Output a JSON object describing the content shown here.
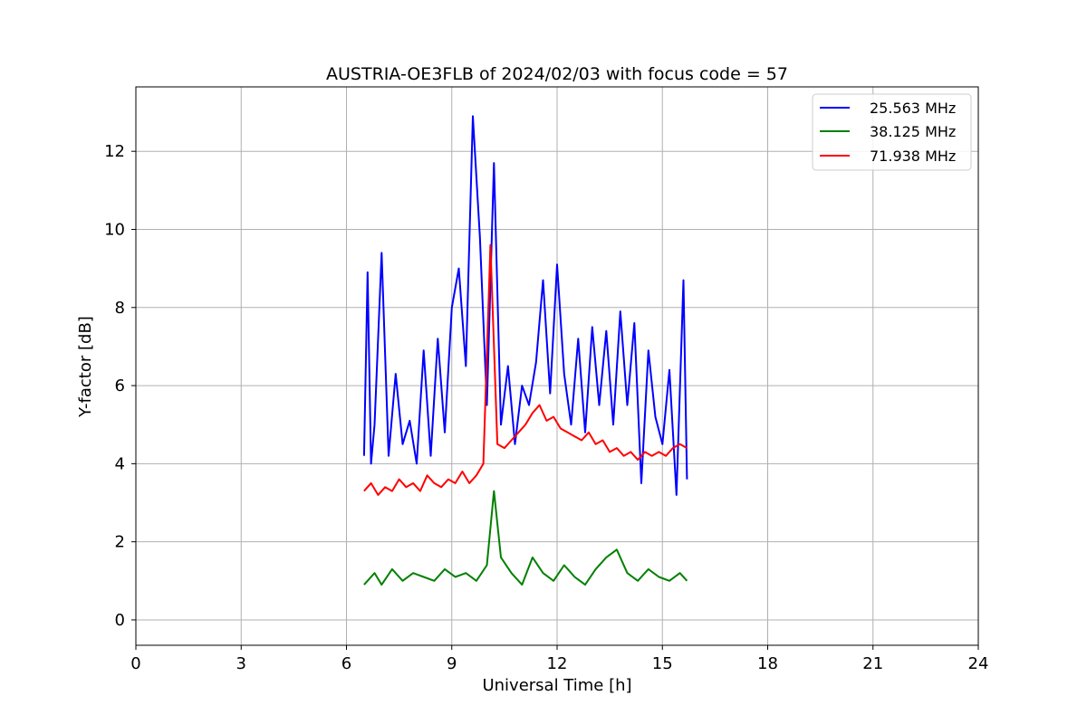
{
  "chart_data": {
    "type": "line",
    "title": "AUSTRIA-OE3FLB of 2024/02/03 with focus code = 57",
    "xlabel": "Universal Time [h]",
    "ylabel": "Y-factor [dB]",
    "xlim": [
      0,
      24
    ],
    "ylim": [
      -0.65,
      13.65
    ],
    "xticks": [
      0,
      3,
      6,
      9,
      12,
      15,
      18,
      21,
      24
    ],
    "yticks": [
      0,
      2,
      4,
      6,
      8,
      10,
      12
    ],
    "grid": true,
    "legend_position": "top-right",
    "series": [
      {
        "name": "25.563 MHz",
        "color": "#0000ff",
        "x": [
          6.5,
          6.6,
          6.7,
          6.8,
          7.0,
          7.2,
          7.4,
          7.6,
          7.8,
          8.0,
          8.2,
          8.4,
          8.6,
          8.8,
          9.0,
          9.2,
          9.4,
          9.6,
          9.8,
          10.0,
          10.2,
          10.4,
          10.6,
          10.8,
          11.0,
          11.2,
          11.4,
          11.6,
          11.8,
          12.0,
          12.2,
          12.4,
          12.6,
          12.8,
          13.0,
          13.2,
          13.4,
          13.6,
          13.8,
          14.0,
          14.2,
          14.4,
          14.6,
          14.8,
          15.0,
          15.2,
          15.4,
          15.6,
          15.7
        ],
        "y": [
          4.2,
          8.9,
          4.0,
          5.0,
          9.4,
          4.2,
          6.3,
          4.5,
          5.1,
          4.0,
          6.9,
          4.2,
          7.2,
          4.8,
          8.0,
          9.0,
          6.5,
          12.9,
          9.8,
          5.5,
          11.7,
          5.0,
          6.5,
          4.5,
          6.0,
          5.5,
          6.6,
          8.7,
          5.8,
          9.1,
          6.3,
          5.0,
          7.2,
          4.8,
          7.5,
          5.5,
          7.4,
          5.0,
          7.9,
          5.5,
          7.6,
          3.5,
          6.9,
          5.2,
          4.5,
          6.4,
          3.2,
          8.7,
          3.6
        ]
      },
      {
        "name": "38.125 MHz",
        "color": "#008000",
        "x": [
          6.5,
          6.8,
          7.0,
          7.3,
          7.6,
          7.9,
          8.2,
          8.5,
          8.8,
          9.1,
          9.4,
          9.7,
          10.0,
          10.2,
          10.4,
          10.7,
          11.0,
          11.3,
          11.6,
          11.9,
          12.2,
          12.5,
          12.8,
          13.1,
          13.4,
          13.7,
          14.0,
          14.3,
          14.6,
          14.9,
          15.2,
          15.5,
          15.7
        ],
        "y": [
          0.9,
          1.2,
          0.9,
          1.3,
          1.0,
          1.2,
          1.1,
          1.0,
          1.3,
          1.1,
          1.2,
          1.0,
          1.4,
          3.3,
          1.6,
          1.2,
          0.9,
          1.6,
          1.2,
          1.0,
          1.4,
          1.1,
          0.9,
          1.3,
          1.6,
          1.8,
          1.2,
          1.0,
          1.3,
          1.1,
          1.0,
          1.2,
          1.0
        ]
      },
      {
        "name": "71.938 MHz",
        "color": "#ff0000",
        "x": [
          6.5,
          6.7,
          6.9,
          7.1,
          7.3,
          7.5,
          7.7,
          7.9,
          8.1,
          8.3,
          8.5,
          8.7,
          8.9,
          9.1,
          9.3,
          9.5,
          9.7,
          9.9,
          10.1,
          10.3,
          10.5,
          10.7,
          10.9,
          11.1,
          11.3,
          11.5,
          11.7,
          11.9,
          12.1,
          12.3,
          12.5,
          12.7,
          12.9,
          13.1,
          13.3,
          13.5,
          13.7,
          13.9,
          14.1,
          14.3,
          14.5,
          14.7,
          14.9,
          15.1,
          15.3,
          15.5,
          15.7
        ],
        "y": [
          3.3,
          3.5,
          3.2,
          3.4,
          3.3,
          3.6,
          3.4,
          3.5,
          3.3,
          3.7,
          3.5,
          3.4,
          3.6,
          3.5,
          3.8,
          3.5,
          3.7,
          4.0,
          9.6,
          4.5,
          4.4,
          4.6,
          4.8,
          5.0,
          5.3,
          5.5,
          5.1,
          5.2,
          4.9,
          4.8,
          4.7,
          4.6,
          4.8,
          4.5,
          4.6,
          4.3,
          4.4,
          4.2,
          4.3,
          4.1,
          4.3,
          4.2,
          4.3,
          4.2,
          4.4,
          4.5,
          4.4
        ]
      }
    ]
  }
}
